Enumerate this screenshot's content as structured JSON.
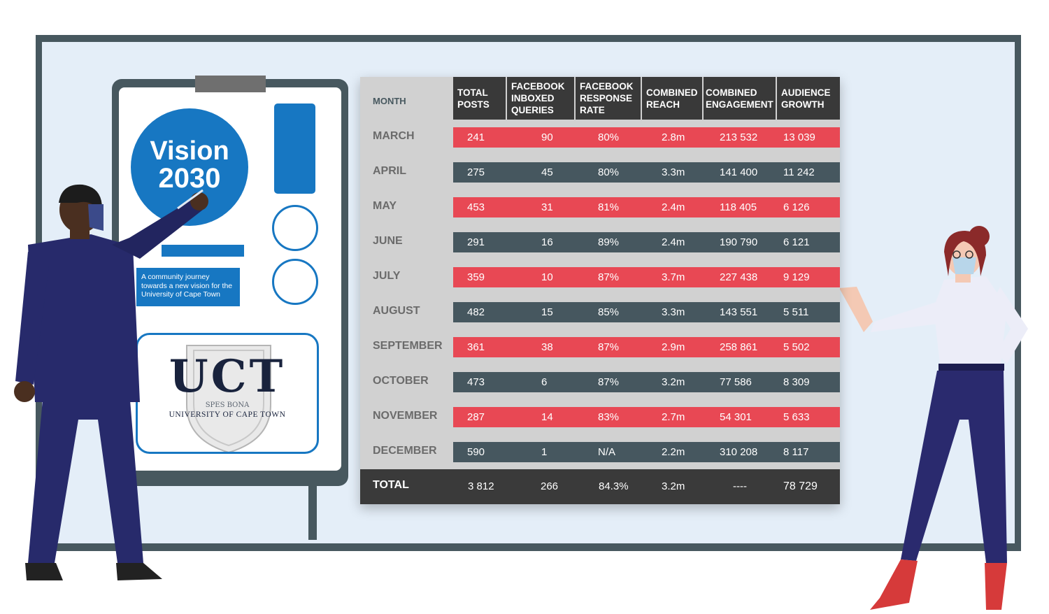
{
  "poster": {
    "title_line1": "Vision",
    "title_line2": "2030",
    "tagline": [
      "A community journey",
      "towards a new vision for the",
      "University of Cape Town"
    ],
    "logo_text": "UCT",
    "motto": "SPES BONA",
    "university_name": "UNIVERSITY OF CAPE TOWN"
  },
  "table": {
    "headers": {
      "month": "MONTH",
      "total_posts": [
        "TOTAL",
        "POSTS"
      ],
      "fb_queries": [
        "FACEBOOK",
        "INBOXED",
        "QUERIES"
      ],
      "fb_rate": [
        "FACEBOOK",
        "RESPONSE",
        "RATE"
      ],
      "reach": [
        "COMBINED",
        "REACH"
      ],
      "engagement": [
        "COMBINED",
        "ENGAGEMENT"
      ],
      "growth": [
        "AUDIENCE",
        "GROWTH"
      ]
    },
    "rows": [
      {
        "month": "MARCH",
        "posts": "241",
        "queries": "90",
        "rate": "80%",
        "reach": "2.8m",
        "engagement": "213 532",
        "growth": "13 039",
        "style": "red"
      },
      {
        "month": "APRIL",
        "posts": "275",
        "queries": "45",
        "rate": "80%",
        "reach": "3.3m",
        "engagement": "141 400",
        "growth": "11 242",
        "style": "dark"
      },
      {
        "month": "MAY",
        "posts": "453",
        "queries": "31",
        "rate": "81%",
        "reach": "2.4m",
        "engagement": "118 405",
        "growth": "6 126",
        "style": "red"
      },
      {
        "month": "JUNE",
        "posts": "291",
        "queries": "16",
        "rate": "89%",
        "reach": "2.4m",
        "engagement": "190 790",
        "growth": "6 121",
        "style": "dark"
      },
      {
        "month": "JULY",
        "posts": "359",
        "queries": "10",
        "rate": "87%",
        "reach": "3.7m",
        "engagement": "227 438",
        "growth": "9 129",
        "style": "red"
      },
      {
        "month": "AUGUST",
        "posts": "482",
        "queries": "15",
        "rate": "85%",
        "reach": "3.3m",
        "engagement": "143 551",
        "growth": "5 511",
        "style": "dark"
      },
      {
        "month": "SEPTEMBER",
        "posts": "361",
        "queries": "38",
        "rate": "87%",
        "reach": "2.9m",
        "engagement": "258 861",
        "growth": "5 502",
        "style": "red"
      },
      {
        "month": "OCTOBER",
        "posts": "473",
        "queries": "6",
        "rate": "87%",
        "reach": "3.2m",
        "engagement": "77 586",
        "growth": "8 309",
        "style": "dark"
      },
      {
        "month": "NOVEMBER",
        "posts": "287",
        "queries": "14",
        "rate": "83%",
        "reach": "2.7m",
        "engagement": "54 301",
        "growth": "5 633",
        "style": "red"
      },
      {
        "month": "DECEMBER",
        "posts": "590",
        "queries": "1",
        "rate": "N/A",
        "reach": "2.2m",
        "engagement": "310 208",
        "growth": "8 117",
        "style": "dark"
      }
    ],
    "total": {
      "label": "TOTAL",
      "posts": "3 812",
      "queries": "266",
      "rate": "84.3%",
      "reach": "3.2m",
      "engagement": "----",
      "growth": "78 729"
    }
  },
  "colors": {
    "accent_red": "#e84854",
    "accent_dark": "#46575f",
    "uct_blue": "#1777c2",
    "frame": "#47585f"
  }
}
